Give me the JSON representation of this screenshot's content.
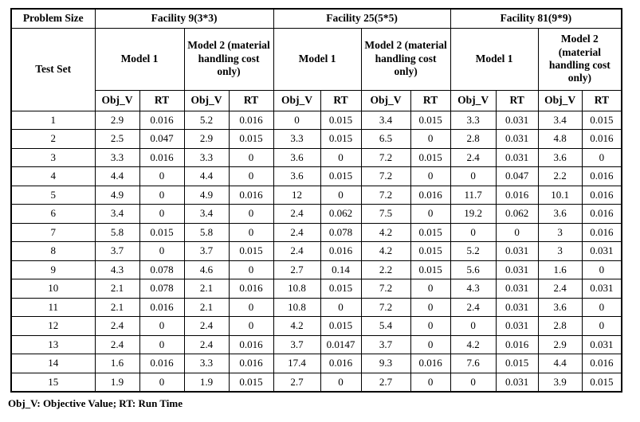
{
  "table": {
    "header": {
      "problem_size": "Problem Size",
      "test_set": "Test Set",
      "facility_labels": [
        "Facility 9(3*3)",
        "Facility 25(5*5)",
        "Facility 81(9*9)"
      ],
      "model1_label": "Model 1",
      "model2_label": "Model 2 (material handling cost only)",
      "objv_label": "Obj_V",
      "rt_label": "RT"
    },
    "rows": [
      {
        "test_set": "1",
        "values": [
          "2.9",
          "0.016",
          "5.2",
          "0.016",
          "0",
          "0.015",
          "3.4",
          "0.015",
          "3.3",
          "0.031",
          "3.4",
          "0.015"
        ]
      },
      {
        "test_set": "2",
        "values": [
          "2.5",
          "0.047",
          "2.9",
          "0.015",
          "3.3",
          "0.015",
          "6.5",
          "0",
          "2.8",
          "0.031",
          "4.8",
          "0.016"
        ]
      },
      {
        "test_set": "3",
        "values": [
          "3.3",
          "0.016",
          "3.3",
          "0",
          "3.6",
          "0",
          "7.2",
          "0.015",
          "2.4",
          "0.031",
          "3.6",
          "0"
        ]
      },
      {
        "test_set": "4",
        "values": [
          "4.4",
          "0",
          "4.4",
          "0",
          "3.6",
          "0.015",
          "7.2",
          "0",
          "0",
          "0.047",
          "2.2",
          "0.016"
        ]
      },
      {
        "test_set": "5",
        "values": [
          "4.9",
          "0",
          "4.9",
          "0.016",
          "12",
          "0",
          "7.2",
          "0.016",
          "11.7",
          "0.016",
          "10.1",
          "0.016"
        ]
      },
      {
        "test_set": "6",
        "values": [
          "3.4",
          "0",
          "3.4",
          "0",
          "2.4",
          "0.062",
          "7.5",
          "0",
          "19.2",
          "0.062",
          "3.6",
          "0.016"
        ]
      },
      {
        "test_set": "7",
        "values": [
          "5.8",
          "0.015",
          "5.8",
          "0",
          "2.4",
          "0.078",
          "4.2",
          "0.015",
          "0",
          "0",
          "3",
          "0.016"
        ]
      },
      {
        "test_set": "8",
        "values": [
          "3.7",
          "0",
          "3.7",
          "0.015",
          "2.4",
          "0.016",
          "4.2",
          "0.015",
          "5.2",
          "0.031",
          "3",
          "0.031"
        ]
      },
      {
        "test_set": "9",
        "values": [
          "4.3",
          "0.078",
          "4.6",
          "0",
          "2.7",
          "0.14",
          "2.2",
          "0.015",
          "5.6",
          "0.031",
          "1.6",
          "0"
        ]
      },
      {
        "test_set": "10",
        "values": [
          "2.1",
          "0.078",
          "2.1",
          "0.016",
          "10.8",
          "0.015",
          "7.2",
          "0",
          "4.3",
          "0.031",
          "2.4",
          "0.031"
        ]
      },
      {
        "test_set": "11",
        "values": [
          "2.1",
          "0.016",
          "2.1",
          "0",
          "10.8",
          "0",
          "7.2",
          "0",
          "2.4",
          "0.031",
          "3.6",
          "0"
        ]
      },
      {
        "test_set": "12",
        "values": [
          "2.4",
          "0",
          "2.4",
          "0",
          "4.2",
          "0.015",
          "5.4",
          "0",
          "0",
          "0.031",
          "2.8",
          "0"
        ]
      },
      {
        "test_set": "13",
        "values": [
          "2.4",
          "0",
          "2.4",
          "0.016",
          "3.7",
          "0.0147",
          "3.7",
          "0",
          "4.2",
          "0.016",
          "2.9",
          "0.031"
        ]
      },
      {
        "test_set": "14",
        "values": [
          "1.6",
          "0.016",
          "3.3",
          "0.016",
          "17.4",
          "0.016",
          "9.3",
          "0.016",
          "7.6",
          "0.015",
          "4.4",
          "0.016"
        ]
      },
      {
        "test_set": "15",
        "values": [
          "1.9",
          "0",
          "1.9",
          "0.015",
          "2.7",
          "0",
          "2.7",
          "0",
          "0",
          "0.031",
          "3.9",
          "0.015"
        ]
      }
    ],
    "footnote": "Obj_V: Objective Value; RT: Run Time"
  }
}
